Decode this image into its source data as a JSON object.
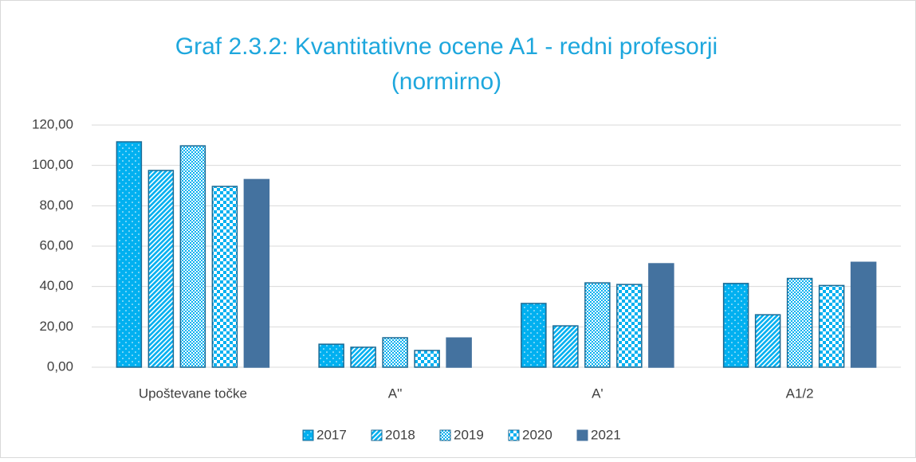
{
  "chart_data": {
    "type": "bar",
    "title": [
      "Graf 2.3.2: Kvantitativne ocene A1 - redni profesorji",
      "(normirno)"
    ],
    "categories": [
      "Upoštevane točke",
      "A''",
      "A'",
      "A1/2"
    ],
    "series": [
      {
        "name": "2017",
        "color": "#00b0f0",
        "values": [
          111.7,
          11.4,
          31.6,
          41.5
        ]
      },
      {
        "name": "2018",
        "color": "#00b0f0",
        "values": [
          97.5,
          9.9,
          20.5,
          26
        ]
      },
      {
        "name": "2019",
        "color": "#00b0f0",
        "values": [
          109.7,
          14.6,
          41.8,
          44
        ]
      },
      {
        "name": "2020",
        "color": "#00b0f0",
        "values": [
          89.6,
          8.3,
          41,
          40.5
        ]
      },
      {
        "name": "2021",
        "color": "#44729f",
        "values": [
          93,
          14.5,
          51.3,
          52
        ]
      }
    ],
    "ylim": [
      0,
      120
    ],
    "yticks": [
      {
        "value": 0,
        "label": "0,00"
      },
      {
        "value": 20,
        "label": "20,00"
      },
      {
        "value": 40,
        "label": "40,00"
      },
      {
        "value": 60,
        "label": "60,00"
      },
      {
        "value": 80,
        "label": "80,00"
      },
      {
        "value": 100,
        "label": "100,00"
      },
      {
        "value": 120,
        "label": "120,00"
      }
    ],
    "grid": true,
    "legend": "bottom"
  }
}
